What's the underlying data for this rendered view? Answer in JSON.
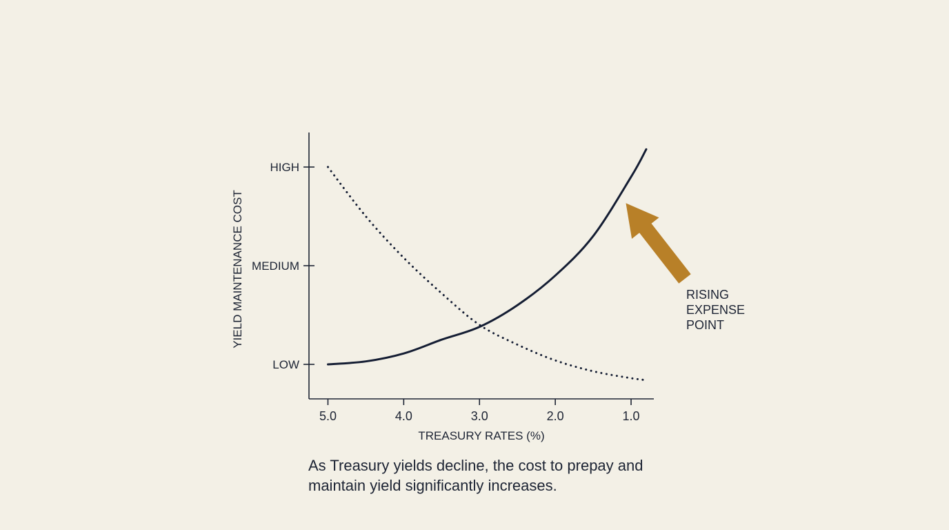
{
  "chart_data": {
    "type": "line",
    "title": "",
    "xlabel": "TREASURY RATES (%)",
    "ylabel": "YIELD MAINTENANCE COST",
    "x_ticks": [
      "5.0",
      "4.0",
      "3.0",
      "2.0",
      "1.0"
    ],
    "x_tick_values": [
      5.0,
      4.0,
      3.0,
      2.0,
      1.0
    ],
    "x_reversed": true,
    "xlim": [
      5.25,
      0.7
    ],
    "y_ticks": [
      "LOW",
      "MEDIUM",
      "HIGH"
    ],
    "y_tick_values": [
      1,
      2,
      3
    ],
    "ylim": [
      0.65,
      3.35
    ],
    "grid": false,
    "series": [
      {
        "style": "solid",
        "color": "#141d33",
        "x": [
          5.0,
          4.5,
          4.0,
          3.5,
          3.0,
          2.5,
          2.0,
          1.5,
          1.0,
          0.8
        ],
        "y": [
          1.0,
          1.03,
          1.11,
          1.25,
          1.38,
          1.6,
          1.9,
          2.3,
          2.9,
          3.18
        ]
      },
      {
        "style": "dotted",
        "color": "#141d33",
        "x": [
          5.0,
          4.5,
          4.0,
          3.5,
          3.0,
          2.5,
          2.0,
          1.5,
          1.0,
          0.8
        ],
        "y": [
          3.0,
          2.5,
          2.08,
          1.72,
          1.4,
          1.2,
          1.04,
          0.93,
          0.86,
          0.84
        ]
      }
    ],
    "annotations": [
      {
        "lines": [
          "RISING",
          "EXPENSE",
          "POINT"
        ],
        "arrow_color": "#b88028",
        "points_to": {
          "x": 1.05,
          "y": 2.55
        }
      }
    ]
  },
  "caption": "As Treasury yields decline, the cost to prepay and maintain yield significantly increases."
}
